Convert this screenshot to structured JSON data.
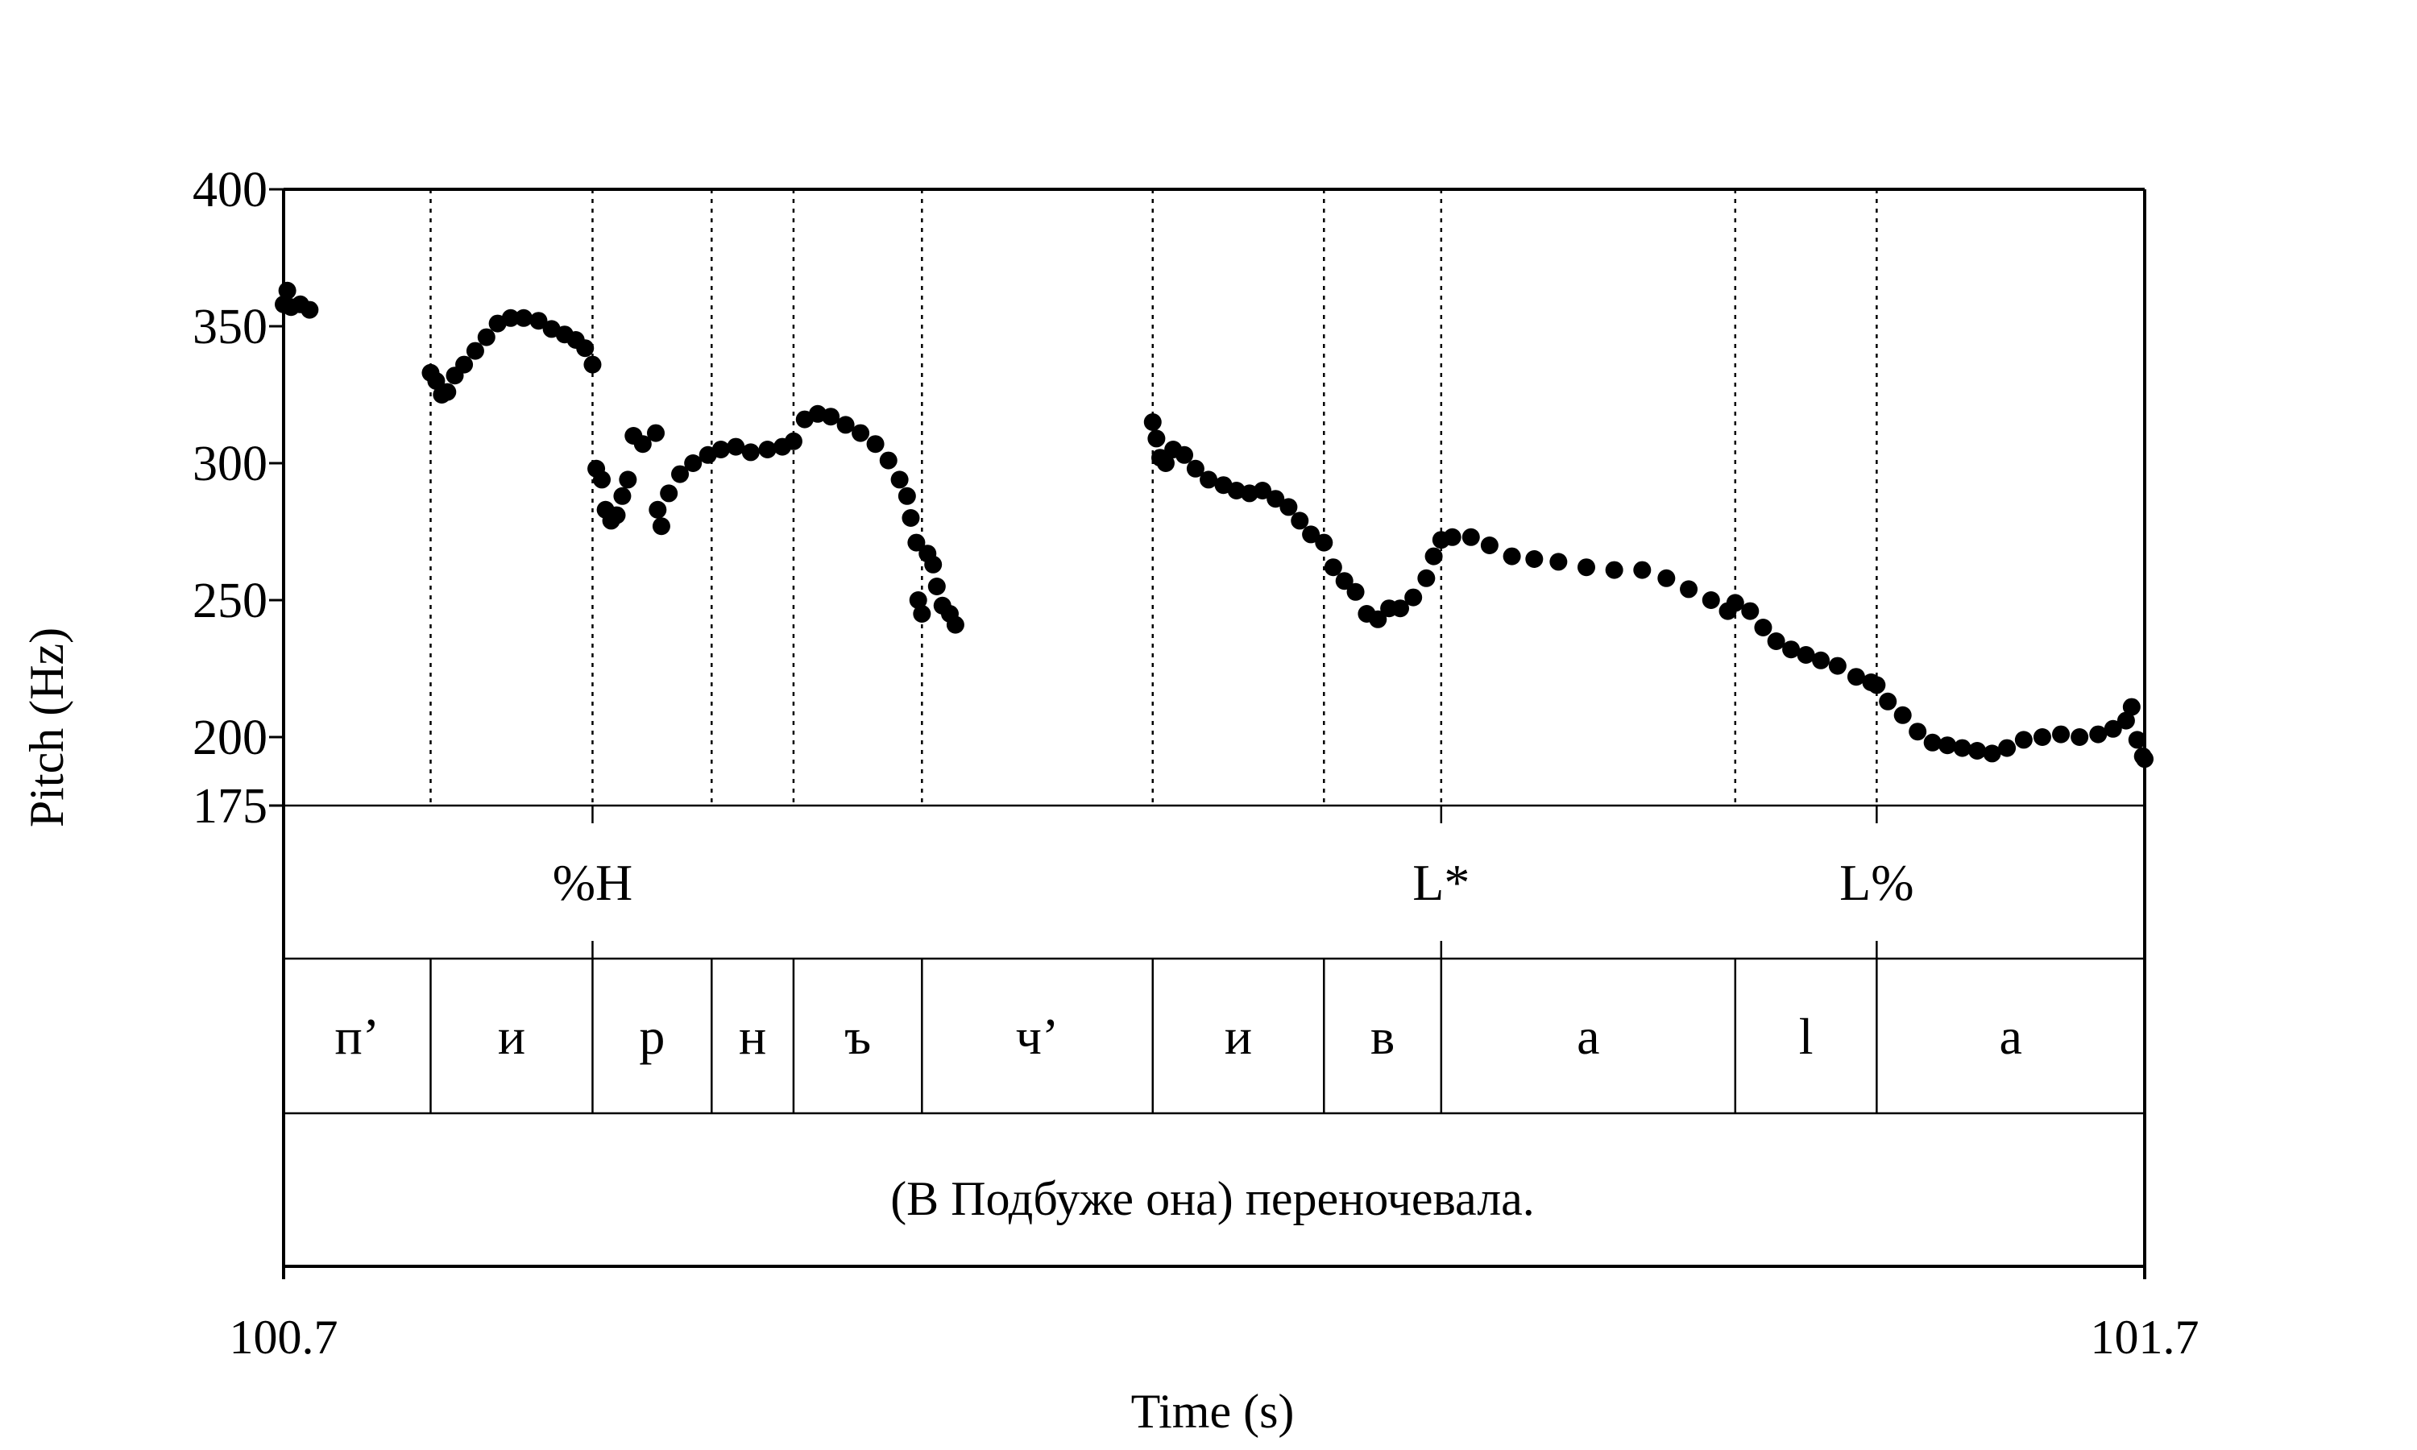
{
  "chart_data": {
    "type": "scatter",
    "xlabel": "Time (s)",
    "ylabel": "Pitch (Hz)",
    "xlim": [
      100.7,
      101.7
    ],
    "ylim": [
      175,
      400
    ],
    "y_ticks": [
      175,
      200,
      250,
      300,
      350,
      400
    ],
    "y_tick_labels": [
      "175",
      "200",
      "250",
      "300",
      "350",
      "400"
    ],
    "x_tick_labels": [
      "100.7",
      "101.7"
    ],
    "grid": "dotted vertical lines at segment boundaries",
    "marker_color": "#000000",
    "segments": [
      {
        "start": 100.7,
        "end": 100.779,
        "label": "п’"
      },
      {
        "start": 100.779,
        "end": 100.866,
        "label": "и"
      },
      {
        "start": 100.866,
        "end": 100.93,
        "label": "р"
      },
      {
        "start": 100.93,
        "end": 100.974,
        "label": "н"
      },
      {
        "start": 100.974,
        "end": 101.043,
        "label": "ъ"
      },
      {
        "start": 101.043,
        "end": 101.167,
        "label": "ч’"
      },
      {
        "start": 101.167,
        "end": 101.259,
        "label": "и"
      },
      {
        "start": 101.259,
        "end": 101.322,
        "label": "в"
      },
      {
        "start": 101.322,
        "end": 101.48,
        "label": "а"
      },
      {
        "start": 101.48,
        "end": 101.556,
        "label": "l"
      },
      {
        "start": 101.556,
        "end": 101.7,
        "label": "а"
      }
    ],
    "tones": [
      {
        "time": 100.866,
        "label": "%H"
      },
      {
        "time": 101.322,
        "label": "L*"
      },
      {
        "time": 101.556,
        "label": "L%"
      }
    ],
    "sentence": "(В Подбуже она) переночевала.",
    "pitch_points": [
      [
        100.7,
        358
      ],
      [
        100.702,
        363
      ],
      [
        100.704,
        357
      ],
      [
        100.709,
        358
      ],
      [
        100.714,
        356
      ],
      [
        100.779,
        333
      ],
      [
        100.782,
        330
      ],
      [
        100.785,
        325
      ],
      [
        100.788,
        326
      ],
      [
        100.792,
        332
      ],
      [
        100.797,
        336
      ],
      [
        100.803,
        341
      ],
      [
        100.809,
        346
      ],
      [
        100.815,
        351
      ],
      [
        100.822,
        353
      ],
      [
        100.829,
        353
      ],
      [
        100.837,
        352
      ],
      [
        100.844,
        349
      ],
      [
        100.851,
        347
      ],
      [
        100.857,
        345
      ],
      [
        100.862,
        342
      ],
      [
        100.866,
        336
      ],
      [
        100.868,
        298
      ],
      [
        100.871,
        294
      ],
      [
        100.873,
        283
      ],
      [
        100.876,
        279
      ],
      [
        100.879,
        281
      ],
      [
        100.882,
        288
      ],
      [
        100.885,
        294
      ],
      [
        100.888,
        310
      ],
      [
        100.893,
        307
      ],
      [
        100.9,
        311
      ],
      [
        100.901,
        283
      ],
      [
        100.903,
        277
      ],
      [
        100.907,
        289
      ],
      [
        100.913,
        296
      ],
      [
        100.92,
        300
      ],
      [
        100.928,
        303
      ],
      [
        100.935,
        305
      ],
      [
        100.943,
        306
      ],
      [
        100.951,
        304
      ],
      [
        100.96,
        305
      ],
      [
        100.968,
        306
      ],
      [
        100.974,
        308
      ],
      [
        100.98,
        316
      ],
      [
        100.987,
        318
      ],
      [
        100.994,
        317
      ],
      [
        101.002,
        314
      ],
      [
        101.01,
        311
      ],
      [
        101.018,
        307
      ],
      [
        101.025,
        301
      ],
      [
        101.031,
        294
      ],
      [
        101.035,
        288
      ],
      [
        101.037,
        280
      ],
      [
        101.04,
        271
      ],
      [
        101.041,
        250
      ],
      [
        101.043,
        245
      ],
      [
        101.046,
        267
      ],
      [
        101.049,
        263
      ],
      [
        101.051,
        255
      ],
      [
        101.054,
        248
      ],
      [
        101.058,
        245
      ],
      [
        101.061,
        241
      ],
      [
        101.167,
        315
      ],
      [
        101.169,
        309
      ],
      [
        101.171,
        302
      ],
      [
        101.174,
        300
      ],
      [
        101.178,
        305
      ],
      [
        101.184,
        303
      ],
      [
        101.19,
        298
      ],
      [
        101.197,
        294
      ],
      [
        101.205,
        292
      ],
      [
        101.212,
        290
      ],
      [
        101.219,
        289
      ],
      [
        101.226,
        290
      ],
      [
        101.233,
        287
      ],
      [
        101.24,
        284
      ],
      [
        101.246,
        279
      ],
      [
        101.252,
        274
      ],
      [
        101.259,
        271
      ],
      [
        101.264,
        262
      ],
      [
        101.27,
        257
      ],
      [
        101.276,
        253
      ],
      [
        101.282,
        245
      ],
      [
        101.288,
        243
      ],
      [
        101.294,
        247
      ],
      [
        101.3,
        247
      ],
      [
        101.307,
        251
      ],
      [
        101.314,
        258
      ],
      [
        101.318,
        266
      ],
      [
        101.322,
        272
      ],
      [
        101.328,
        273
      ],
      [
        101.338,
        273
      ],
      [
        101.348,
        270
      ],
      [
        101.36,
        266
      ],
      [
        101.372,
        265
      ],
      [
        101.385,
        264
      ],
      [
        101.4,
        262
      ],
      [
        101.415,
        261
      ],
      [
        101.43,
        261
      ],
      [
        101.443,
        258
      ],
      [
        101.455,
        254
      ],
      [
        101.467,
        250
      ],
      [
        101.476,
        246
      ],
      [
        101.48,
        249
      ],
      [
        101.488,
        246
      ],
      [
        101.495,
        240
      ],
      [
        101.502,
        235
      ],
      [
        101.51,
        232
      ],
      [
        101.518,
        230
      ],
      [
        101.526,
        228
      ],
      [
        101.535,
        226
      ],
      [
        101.545,
        222
      ],
      [
        101.553,
        220
      ],
      [
        101.556,
        219
      ],
      [
        101.562,
        213
      ],
      [
        101.57,
        208
      ],
      [
        101.578,
        202
      ],
      [
        101.586,
        198
      ],
      [
        101.594,
        197
      ],
      [
        101.602,
        196
      ],
      [
        101.61,
        195
      ],
      [
        101.618,
        194
      ],
      [
        101.626,
        196
      ],
      [
        101.635,
        199
      ],
      [
        101.645,
        200
      ],
      [
        101.655,
        201
      ],
      [
        101.665,
        200
      ],
      [
        101.675,
        201
      ],
      [
        101.683,
        203
      ],
      [
        101.69,
        206
      ],
      [
        101.693,
        211
      ],
      [
        101.696,
        199
      ],
      [
        101.699,
        193
      ],
      [
        101.7,
        192
      ]
    ]
  }
}
